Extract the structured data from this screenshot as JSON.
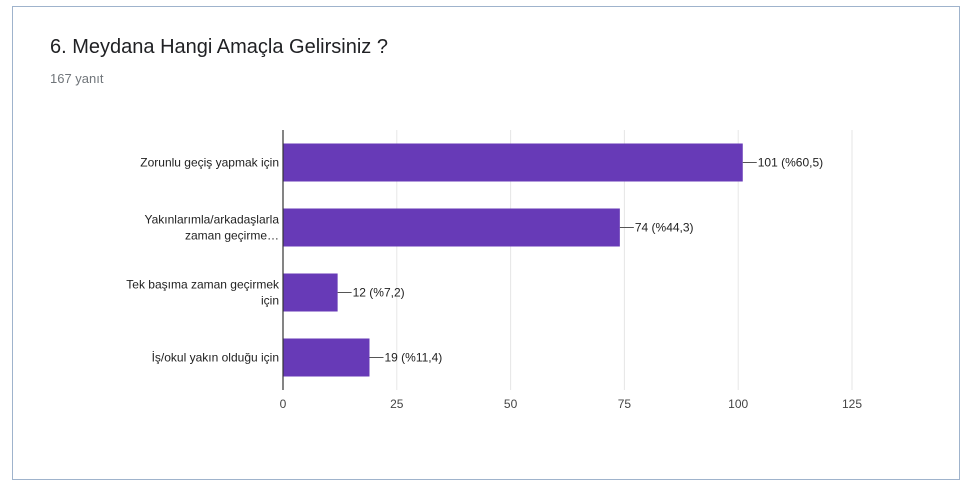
{
  "header": {
    "title": "6. Meydana Hangi Amaçla Gelirsiniz ?",
    "subtitle": "167 yanıt"
  },
  "colors": {
    "bar": "#673ab7",
    "grid": "#e6e6e6",
    "axis": "#333333"
  },
  "chart_data": {
    "type": "bar",
    "orientation": "horizontal",
    "title": "6. Meydana Hangi Amaçla Gelirsiniz ?",
    "subtitle": "167 yanıt",
    "categories": [
      [
        "Zorunlu geçiş yapmak için"
      ],
      [
        "Yakınlarımla/arkadaşlarla",
        "zaman geçirme…"
      ],
      [
        "Tek başıma zaman geçirmek",
        "için"
      ],
      [
        "İş/okul yakın olduğu için"
      ]
    ],
    "values": [
      101,
      74,
      12,
      19
    ],
    "data_labels": [
      "101 (%60,5)",
      "74 (%44,3)",
      "12 (%7,2)",
      "19 (%11,4)"
    ],
    "xlim": [
      0,
      125
    ],
    "xticks": [
      0,
      25,
      50,
      75,
      100,
      125
    ],
    "xtick_labels": [
      "0",
      "25",
      "50",
      "75",
      "100",
      "125"
    ],
    "grid": true,
    "legend": "none"
  }
}
